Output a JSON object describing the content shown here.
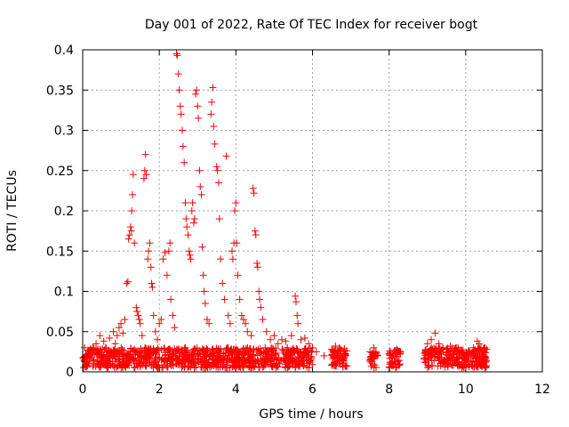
{
  "chart_data": {
    "type": "scatter",
    "title": "Day 001 of 2022, Rate Of TEC Index for receiver bogt",
    "xlabel": "GPS time / hours",
    "ylabel": "ROTI / TECUs",
    "xlim": [
      0,
      12
    ],
    "ylim": [
      0,
      0.4
    ],
    "x_ticks": [
      {
        "value": 0,
        "label": "0"
      },
      {
        "value": 2,
        "label": "2"
      },
      {
        "value": 4,
        "label": "4"
      },
      {
        "value": 6,
        "label": "6"
      },
      {
        "value": 8,
        "label": "8"
      },
      {
        "value": 10,
        "label": "10"
      },
      {
        "value": 12,
        "label": "12"
      }
    ],
    "y_ticks": [
      {
        "value": 0,
        "label": "0"
      },
      {
        "value": 0.05,
        "label": "0.05"
      },
      {
        "value": 0.1,
        "label": "0.1"
      },
      {
        "value": 0.15,
        "label": "0.15"
      },
      {
        "value": 0.2,
        "label": "0.2"
      },
      {
        "value": 0.25,
        "label": "0.25"
      },
      {
        "value": 0.3,
        "label": "0.3"
      },
      {
        "value": 0.35,
        "label": "0.35"
      },
      {
        "value": 0.4,
        "label": "0.4"
      }
    ],
    "grid": true,
    "marker": "plus",
    "color": "#ff0000",
    "series": [
      {
        "points": [
          [
            0.05,
            0.03
          ],
          [
            0.1,
            0.02
          ],
          [
            0.2,
            0.025
          ],
          [
            0.3,
            0.015
          ],
          [
            0.35,
            0.035
          ],
          [
            0.4,
            0.028
          ],
          [
            0.45,
            0.045
          ],
          [
            0.5,
            0.02
          ],
          [
            0.55,
            0.038
          ],
          [
            0.6,
            0.03
          ],
          [
            0.7,
            0.042
          ],
          [
            0.75,
            0.025
          ],
          [
            0.8,
            0.05
          ],
          [
            0.85,
            0.035
          ],
          [
            0.9,
            0.045
          ],
          [
            0.95,
            0.055
          ],
          [
            1.0,
            0.06
          ],
          [
            1.05,
            0.048
          ],
          [
            1.1,
            0.065
          ],
          [
            1.15,
            0.11
          ],
          [
            1.18,
            0.112
          ],
          [
            1.2,
            0.165
          ],
          [
            1.22,
            0.17
          ],
          [
            1.25,
            0.18
          ],
          [
            1.27,
            0.175
          ],
          [
            1.28,
            0.2
          ],
          [
            1.3,
            0.22
          ],
          [
            1.32,
            0.245
          ],
          [
            1.35,
            0.16
          ],
          [
            1.4,
            0.08
          ],
          [
            1.42,
            0.075
          ],
          [
            1.45,
            0.07
          ],
          [
            1.48,
            0.065
          ],
          [
            1.5,
            0.06
          ],
          [
            1.55,
            0.045
          ],
          [
            1.6,
            0.24
          ],
          [
            1.62,
            0.25
          ],
          [
            1.64,
            0.27
          ],
          [
            1.66,
            0.245
          ],
          [
            1.7,
            0.14
          ],
          [
            1.72,
            0.15
          ],
          [
            1.75,
            0.16
          ],
          [
            1.78,
            0.13
          ],
          [
            1.8,
            0.11
          ],
          [
            1.82,
            0.105
          ],
          [
            1.85,
            0.07
          ],
          [
            1.9,
            0.05
          ],
          [
            1.95,
            0.04
          ],
          [
            2.0,
            0.06
          ],
          [
            2.05,
            0.065
          ],
          [
            2.1,
            0.14
          ],
          [
            2.15,
            0.148
          ],
          [
            2.2,
            0.12
          ],
          [
            2.25,
            0.15
          ],
          [
            2.28,
            0.16
          ],
          [
            2.3,
            0.09
          ],
          [
            2.35,
            0.07
          ],
          [
            2.4,
            0.055
          ],
          [
            2.45,
            0.395
          ],
          [
            2.47,
            0.393
          ],
          [
            2.5,
            0.37
          ],
          [
            2.52,
            0.35
          ],
          [
            2.55,
            0.33
          ],
          [
            2.57,
            0.32
          ],
          [
            2.6,
            0.3
          ],
          [
            2.62,
            0.28
          ],
          [
            2.65,
            0.26
          ],
          [
            2.68,
            0.21
          ],
          [
            2.7,
            0.19
          ],
          [
            2.72,
            0.18
          ],
          [
            2.75,
            0.17
          ],
          [
            2.78,
            0.15
          ],
          [
            2.8,
            0.145
          ],
          [
            2.82,
            0.14
          ],
          [
            2.85,
            0.2
          ],
          [
            2.87,
            0.21
          ],
          [
            2.9,
            0.185
          ],
          [
            2.92,
            0.19
          ],
          [
            2.95,
            0.345
          ],
          [
            2.97,
            0.35
          ],
          [
            3.0,
            0.33
          ],
          [
            3.02,
            0.315
          ],
          [
            3.05,
            0.25
          ],
          [
            3.07,
            0.23
          ],
          [
            3.1,
            0.22
          ],
          [
            3.12,
            0.155
          ],
          [
            3.15,
            0.12
          ],
          [
            3.17,
            0.1
          ],
          [
            3.2,
            0.085
          ],
          [
            3.25,
            0.065
          ],
          [
            3.3,
            0.06
          ],
          [
            3.35,
            0.32
          ],
          [
            3.37,
            0.335
          ],
          [
            3.4,
            0.353
          ],
          [
            3.42,
            0.305
          ],
          [
            3.45,
            0.283
          ],
          [
            3.5,
            0.255
          ],
          [
            3.52,
            0.25
          ],
          [
            3.55,
            0.235
          ],
          [
            3.57,
            0.19
          ],
          [
            3.6,
            0.14
          ],
          [
            3.65,
            0.11
          ],
          [
            3.7,
            0.09
          ],
          [
            3.75,
            0.268
          ],
          [
            3.8,
            0.07
          ],
          [
            3.85,
            0.06
          ],
          [
            3.9,
            0.15
          ],
          [
            3.92,
            0.14
          ],
          [
            3.95,
            0.16
          ],
          [
            3.97,
            0.2
          ],
          [
            4.0,
            0.21
          ],
          [
            4.02,
            0.16
          ],
          [
            4.05,
            0.12
          ],
          [
            4.1,
            0.09
          ],
          [
            4.15,
            0.07
          ],
          [
            4.2,
            0.065
          ],
          [
            4.25,
            0.06
          ],
          [
            4.3,
            0.05
          ],
          [
            4.4,
            0.045
          ],
          [
            4.45,
            0.228
          ],
          [
            4.47,
            0.222
          ],
          [
            4.5,
            0.175
          ],
          [
            4.52,
            0.17
          ],
          [
            4.55,
            0.135
          ],
          [
            4.57,
            0.13
          ],
          [
            4.6,
            0.1
          ],
          [
            4.62,
            0.09
          ],
          [
            4.65,
            0.08
          ],
          [
            4.7,
            0.065
          ],
          [
            4.8,
            0.05
          ],
          [
            4.9,
            0.04
          ],
          [
            5.0,
            0.045
          ],
          [
            5.1,
            0.035
          ],
          [
            5.2,
            0.04
          ],
          [
            5.3,
            0.038
          ],
          [
            5.45,
            0.045
          ],
          [
            5.55,
            0.094
          ],
          [
            5.57,
            0.087
          ],
          [
            5.6,
            0.07
          ],
          [
            5.62,
            0.06
          ],
          [
            5.7,
            0.04
          ],
          [
            5.8,
            0.042
          ],
          [
            5.9,
            0.035
          ],
          [
            6.0,
            0.03
          ],
          [
            6.1,
            0.025
          ],
          [
            6.3,
            0.02
          ],
          [
            6.5,
            0.028
          ],
          [
            6.6,
            0.032
          ],
          [
            6.7,
            0.03
          ],
          [
            6.8,
            0.025
          ],
          [
            7.5,
            0.025
          ],
          [
            7.6,
            0.03
          ],
          [
            7.7,
            0.02
          ],
          [
            8.1,
            0.022
          ],
          [
            8.2,
            0.028
          ],
          [
            8.3,
            0.025
          ],
          [
            9.0,
            0.035
          ],
          [
            9.1,
            0.04
          ],
          [
            9.2,
            0.048
          ],
          [
            9.3,
            0.035
          ],
          [
            9.4,
            0.03
          ],
          [
            9.5,
            0.028
          ],
          [
            9.6,
            0.032
          ],
          [
            9.7,
            0.025
          ],
          [
            9.8,
            0.03
          ],
          [
            9.9,
            0.025
          ],
          [
            10.0,
            0.02
          ],
          [
            10.1,
            0.025
          ],
          [
            10.2,
            0.03
          ],
          [
            10.3,
            0.038
          ],
          [
            10.35,
            0.035
          ],
          [
            10.4,
            0.03
          ],
          [
            10.45,
            0.025
          ],
          [
            10.5,
            0.03
          ],
          [
            10.55,
            0.028
          ]
        ]
      }
    ],
    "dense_band_segments": [
      {
        "x_from": 0.0,
        "x_to": 6.0,
        "y_from": 0.005,
        "y_to": 0.03
      },
      {
        "x_from": 6.5,
        "x_to": 6.9,
        "y_from": 0.005,
        "y_to": 0.03
      },
      {
        "x_from": 7.5,
        "x_to": 7.7,
        "y_from": 0.005,
        "y_to": 0.025
      },
      {
        "x_from": 8.0,
        "x_to": 8.3,
        "y_from": 0.005,
        "y_to": 0.027
      },
      {
        "x_from": 8.9,
        "x_to": 10.55,
        "y_from": 0.005,
        "y_to": 0.03
      }
    ]
  }
}
